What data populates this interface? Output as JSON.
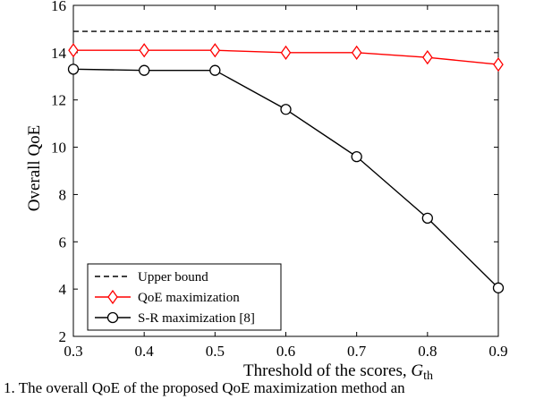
{
  "chart_data": {
    "type": "line",
    "xlabel": "Threshold of the scores, ",
    "xlabel_symbol": "G",
    "xlabel_sub": "th",
    "ylabel": "Overall QoE",
    "xlim": [
      0.3,
      0.9
    ],
    "ylim": [
      2,
      16
    ],
    "x_ticks": [
      "0.3",
      "0.4",
      "0.5",
      "0.6",
      "0.7",
      "0.8",
      "0.9"
    ],
    "y_ticks": [
      "2",
      "4",
      "6",
      "8",
      "10",
      "12",
      "14",
      "16"
    ],
    "x": [
      0.3,
      0.4,
      0.5,
      0.6,
      0.7,
      0.8,
      0.9
    ],
    "series": [
      {
        "name": "Upper bound",
        "values": [
          14.9,
          14.9,
          14.9,
          14.9,
          14.9,
          14.9,
          14.9
        ],
        "color": "#000000",
        "dash": "dashed",
        "marker": "none"
      },
      {
        "name": "QoE maximization",
        "values": [
          14.1,
          14.1,
          14.1,
          14.0,
          14.0,
          13.8,
          13.5
        ],
        "color": "#ff0000",
        "dash": "solid",
        "marker": "diamond"
      },
      {
        "name": "S-R maximization [8]",
        "values": [
          13.3,
          13.25,
          13.25,
          11.6,
          9.6,
          7.0,
          4.05
        ],
        "color": "#000000",
        "dash": "solid",
        "marker": "circle"
      }
    ],
    "grid": false,
    "legend_position": "bottom-left"
  },
  "caption": "1.  The overall QoE of the proposed QoE maximization method an"
}
